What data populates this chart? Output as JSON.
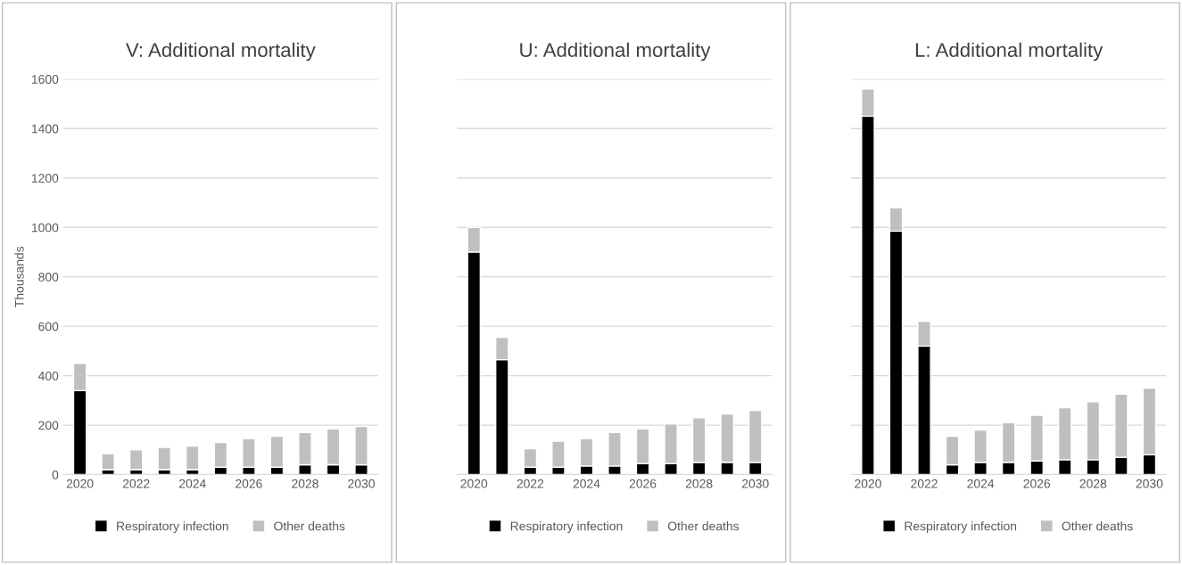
{
  "chart_data": [
    {
      "type": "bar",
      "title": "V: Additional mortality",
      "ylabel": "Thousands",
      "stacked": true,
      "grid": "y",
      "legend": "bottom",
      "categories": [
        "2020",
        null,
        "2022",
        null,
        "2024",
        null,
        "2026",
        null,
        "2028",
        null,
        "2030"
      ],
      "series": [
        {
          "name": "Respiratory infection",
          "color": "#000000",
          "values": [
            340,
            20,
            20,
            20,
            20,
            30,
            30,
            30,
            40,
            40,
            40
          ]
        },
        {
          "name": "Other deaths",
          "color": "#bfbfbf",
          "values": [
            110,
            65,
            80,
            90,
            95,
            100,
            115,
            125,
            130,
            145,
            155
          ]
        }
      ],
      "ylim": [
        0,
        1600
      ],
      "yticks": [
        0,
        200,
        400,
        600,
        800,
        1000,
        1200,
        1400,
        1600
      ]
    },
    {
      "type": "bar",
      "title": "U: Additional mortality",
      "stacked": true,
      "grid": "y",
      "legend": "bottom",
      "tick_labels": "x",
      "categories": [
        "2020",
        null,
        "2022",
        null,
        "2024",
        null,
        "2026",
        null,
        "2028",
        null,
        "2030"
      ],
      "series": [
        {
          "name": "Respiratory infection",
          "color": "#000000",
          "values": [
            900,
            465,
            30,
            30,
            35,
            35,
            45,
            45,
            50,
            50,
            50
          ]
        },
        {
          "name": "Other deaths",
          "color": "#bfbfbf",
          "values": [
            100,
            90,
            75,
            105,
            110,
            135,
            140,
            160,
            180,
            195,
            210
          ]
        }
      ],
      "ylim": [
        0,
        1600
      ],
      "yticks": [
        0,
        200,
        400,
        600,
        800,
        1000,
        1200,
        1400,
        1600
      ]
    },
    {
      "type": "bar",
      "title": "L: Additional mortality",
      "stacked": true,
      "grid": "y",
      "legend": "bottom",
      "tick_labels": "x",
      "categories": [
        "2020",
        null,
        "2022",
        null,
        "2024",
        null,
        "2026",
        null,
        "2028",
        null,
        "2030"
      ],
      "series": [
        {
          "name": "Respiratory infection",
          "color": "#000000",
          "values": [
            1450,
            985,
            520,
            40,
            50,
            50,
            55,
            60,
            60,
            70,
            80
          ]
        },
        {
          "name": "Other deaths",
          "color": "#bfbfbf",
          "values": [
            110,
            95,
            100,
            115,
            130,
            160,
            185,
            210,
            235,
            255,
            270
          ]
        }
      ],
      "ylim": [
        0,
        1600
      ],
      "yticks": [
        0,
        200,
        400,
        600,
        800,
        1000,
        1200,
        1400,
        1600
      ]
    }
  ]
}
